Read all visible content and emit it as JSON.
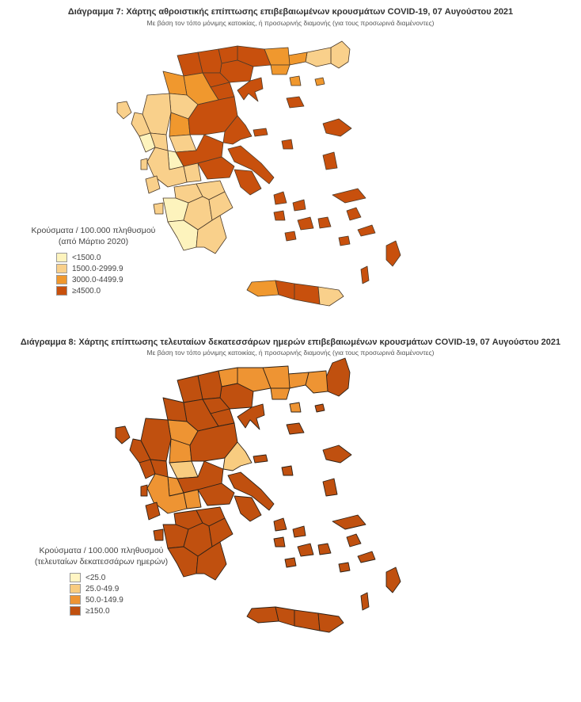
{
  "maps": [
    {
      "title": "Διάγραμμα 7: Χάρτης αθροιστικής επίπτωσης επιβεβαιωμένων κρουσμάτων COVID-19, 07 Αυγούστου 2021",
      "subtitle": "Με βάση τον τόπο μόνιμης κατοικίας, ή προσωρινής διαμονής (για τους προσωρινά διαμένοντες)",
      "legend": {
        "title_line1": "Κρούσματα / 100.000 πληθυσμού",
        "title_line2": "(από Μάρτιο 2020)",
        "classes": [
          {
            "label": "<1500.0",
            "color": "#fdf3bd"
          },
          {
            "label": "1500.0-2999.9",
            "color": "#f9d08b"
          },
          {
            "label": "3000.0-4499.9",
            "color": "#f0982e"
          },
          {
            "label": "≥4500.0",
            "color": "#c8500d"
          }
        ]
      }
    },
    {
      "title": "Διάγραμμα 8: Χάρτης επίπτωσης τελευταίων δεκατεσσάρων ημερών επιβεβαιωμένων κρουσμάτων COVID-19, 07 Αυγούστου 2021",
      "subtitle": "Με βάση τον τόπο μόνιμης κατοικίας, ή προσωρινής διαμονής (για τους προσωρινά διαμένοντες)",
      "legend": {
        "title_line1": "Κρούσματα / 100.000 πληθυσμού",
        "title_line2": "(τελευταίων δεκατεσσάρων ημερών)",
        "classes": [
          {
            "label": "<25.0",
            "color": "#fff5c4"
          },
          {
            "label": "25.0-49.9",
            "color": "#f8cc80"
          },
          {
            "label": "50.0-149.9",
            "color": "#ee9433"
          },
          {
            "label": "≥150.0",
            "color": "#c0500f"
          }
        ]
      }
    }
  ]
}
